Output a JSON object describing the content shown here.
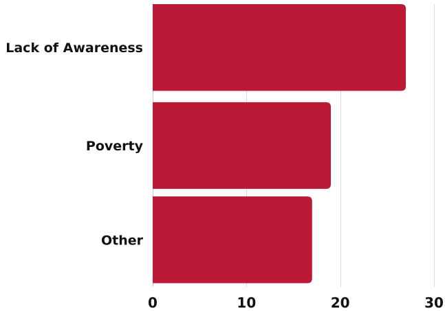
{
  "chart_data": {
    "type": "bar",
    "orientation": "horizontal",
    "title": "",
    "xlabel": "",
    "ylabel": "",
    "categories": [
      "Lack of Awareness",
      "Poverty",
      "Other"
    ],
    "values": [
      27,
      19,
      17
    ],
    "xlim": [
      0,
      30
    ],
    "xticks": [
      0,
      10,
      20,
      30
    ],
    "grid": true,
    "legend": "none",
    "bar_color": "#bb1a37"
  }
}
